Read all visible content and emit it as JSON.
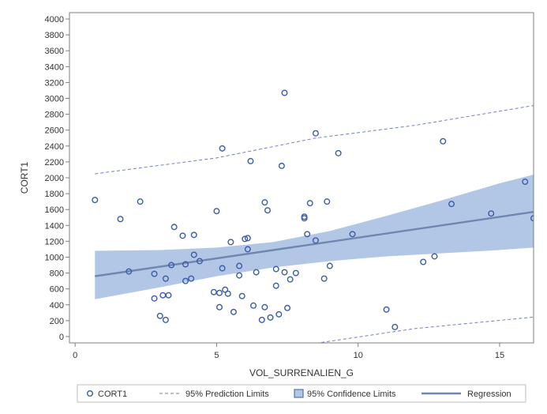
{
  "colors": {
    "marker": "#3a5da5",
    "regression": "#6f87b0",
    "confidence_band": "#b2c7e6",
    "prediction": "#6f7fc0",
    "axis": "#7f7f7f",
    "text": "#333333"
  },
  "chart_data": {
    "type": "scatter",
    "title": "",
    "xlabel": "VOL_SURRENALIEN_G",
    "ylabel": "CORT1",
    "xlim": [
      -0.2,
      16.2
    ],
    "ylim": [
      -80,
      4080
    ],
    "xticks": [
      0,
      5,
      10,
      15
    ],
    "yticks": [
      0,
      200,
      400,
      600,
      800,
      1000,
      1200,
      1400,
      1600,
      1800,
      2000,
      2200,
      2400,
      2600,
      2800,
      3000,
      3200,
      3400,
      3600,
      3800,
      4000
    ],
    "grid": false,
    "legend_position": "bottom",
    "series": [
      {
        "name": "CORT1",
        "kind": "scatter",
        "points": [
          [
            0.7,
            1720
          ],
          [
            1.6,
            1480
          ],
          [
            1.9,
            820
          ],
          [
            2.3,
            1700
          ],
          [
            2.8,
            790
          ],
          [
            2.8,
            480
          ],
          [
            3.0,
            260
          ],
          [
            3.1,
            520
          ],
          [
            3.2,
            730
          ],
          [
            3.2,
            210
          ],
          [
            3.3,
            520
          ],
          [
            3.4,
            900
          ],
          [
            3.5,
            1380
          ],
          [
            3.8,
            1270
          ],
          [
            3.9,
            910
          ],
          [
            3.9,
            700
          ],
          [
            4.1,
            730
          ],
          [
            4.2,
            1280
          ],
          [
            4.2,
            1030
          ],
          [
            4.4,
            950
          ],
          [
            4.9,
            560
          ],
          [
            5.0,
            1580
          ],
          [
            5.1,
            550
          ],
          [
            5.1,
            370
          ],
          [
            5.2,
            2370
          ],
          [
            5.2,
            860
          ],
          [
            5.3,
            590
          ],
          [
            5.4,
            540
          ],
          [
            5.5,
            1190
          ],
          [
            5.6,
            310
          ],
          [
            5.8,
            890
          ],
          [
            5.8,
            770
          ],
          [
            5.9,
            510
          ],
          [
            6.0,
            1230
          ],
          [
            6.1,
            1240
          ],
          [
            6.1,
            1100
          ],
          [
            6.2,
            2210
          ],
          [
            6.3,
            390
          ],
          [
            6.4,
            810
          ],
          [
            6.6,
            210
          ],
          [
            6.7,
            370
          ],
          [
            6.7,
            1690
          ],
          [
            6.8,
            1590
          ],
          [
            6.9,
            240
          ],
          [
            7.1,
            640
          ],
          [
            7.1,
            850
          ],
          [
            7.2,
            280
          ],
          [
            7.3,
            2150
          ],
          [
            7.4,
            3070
          ],
          [
            7.4,
            810
          ],
          [
            7.5,
            360
          ],
          [
            7.6,
            720
          ],
          [
            7.8,
            800
          ],
          [
            8.1,
            1490
          ],
          [
            8.1,
            1510
          ],
          [
            8.2,
            1290
          ],
          [
            8.3,
            1680
          ],
          [
            8.5,
            2560
          ],
          [
            8.5,
            1210
          ],
          [
            8.8,
            730
          ],
          [
            8.9,
            1700
          ],
          [
            9.0,
            890
          ],
          [
            9.3,
            2310
          ],
          [
            9.8,
            1290
          ],
          [
            11.0,
            340
          ],
          [
            11.3,
            120
          ],
          [
            12.3,
            940
          ],
          [
            12.7,
            1010
          ],
          [
            13.0,
            2460
          ],
          [
            13.3,
            1670
          ],
          [
            14.7,
            1550
          ],
          [
            15.9,
            1950
          ],
          [
            16.2,
            1490
          ]
        ]
      },
      {
        "name": "95% Prediction Limits",
        "kind": "band-dashed",
        "upper": [
          [
            0.7,
            2050
          ],
          [
            5.0,
            2250
          ],
          [
            8.5,
            2500
          ],
          [
            12.0,
            2660
          ],
          [
            16.2,
            2910
          ]
        ],
        "lower": [
          [
            8.7,
            -75
          ],
          [
            12.0,
            100
          ],
          [
            16.2,
            245
          ]
        ]
      },
      {
        "name": "95% Confidence Limits",
        "kind": "band-filled",
        "upper": [
          [
            0.7,
            1080
          ],
          [
            3.0,
            1090
          ],
          [
            5.0,
            1120
          ],
          [
            7.0,
            1190
          ],
          [
            9.0,
            1330
          ],
          [
            11.0,
            1520
          ],
          [
            13.0,
            1720
          ],
          [
            15.0,
            1930
          ],
          [
            16.2,
            2040
          ]
        ],
        "lower": [
          [
            0.7,
            470
          ],
          [
            3.0,
            620
          ],
          [
            5.0,
            760
          ],
          [
            7.0,
            870
          ],
          [
            9.0,
            950
          ],
          [
            11.0,
            1010
          ],
          [
            13.0,
            1050
          ],
          [
            15.0,
            1090
          ],
          [
            16.2,
            1120
          ]
        ]
      },
      {
        "name": "Regression",
        "kind": "line",
        "points": [
          [
            0.7,
            760
          ],
          [
            16.2,
            1570
          ]
        ]
      }
    ]
  }
}
